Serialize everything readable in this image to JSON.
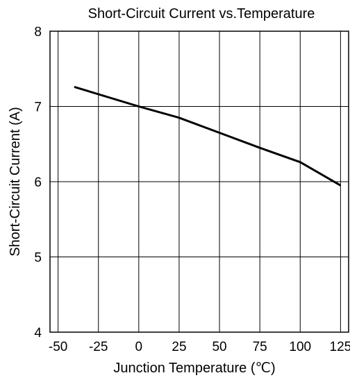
{
  "chart_data": {
    "type": "line",
    "title": "Short-Circuit Current vs.Temperature",
    "xlabel": "Junction Temperature (℃)",
    "ylabel": "Short-Circuit Current (A)",
    "xlim": [
      -55,
      130
    ],
    "ylim": [
      4,
      8
    ],
    "xticks": [
      "-50",
      "-25",
      "0",
      "25",
      "50",
      "75",
      "100",
      "125"
    ],
    "yticks": [
      "4",
      "5",
      "6",
      "7",
      "8"
    ],
    "grid": true,
    "series": [
      {
        "x": [
          -40,
          0,
          25,
          50,
          75,
          100,
          125
        ],
        "y": [
          7.26,
          7.0,
          6.85,
          6.65,
          6.45,
          6.26,
          5.95
        ]
      }
    ]
  }
}
